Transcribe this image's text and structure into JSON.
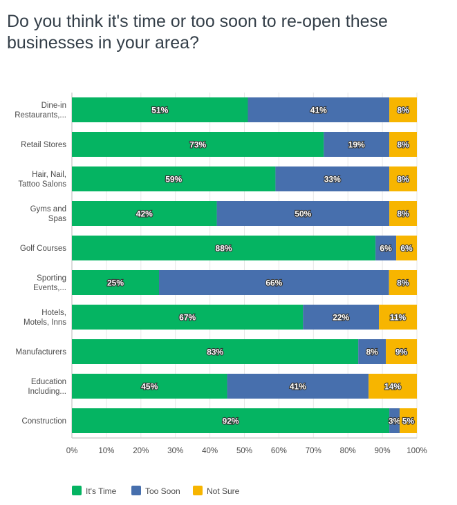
{
  "chart_data": {
    "type": "bar",
    "orientation": "horizontal",
    "stacked": true,
    "title": "Do you think it's time or too soon to re-open these businesses in your area?",
    "categories": [
      [
        "Dine-in",
        "Restaurants,..."
      ],
      [
        "Retail Stores"
      ],
      [
        "Hair, Nail,",
        "Tattoo Salons"
      ],
      [
        "Gyms and",
        "Spas"
      ],
      [
        "Golf Courses"
      ],
      [
        "Sporting",
        "Events,..."
      ],
      [
        "Hotels,",
        "Motels, Inns"
      ],
      [
        "Manufacturers"
      ],
      [
        "Education",
        "Including..."
      ],
      [
        "Construction"
      ]
    ],
    "series": [
      {
        "name": "It's Time",
        "color": "#05b462",
        "values": [
          51,
          73,
          59,
          42,
          88,
          25,
          67,
          83,
          45,
          92
        ]
      },
      {
        "name": "Too Soon",
        "color": "#476fad",
        "values": [
          41,
          19,
          33,
          50,
          6,
          66,
          22,
          8,
          41,
          3
        ]
      },
      {
        "name": "Not Sure",
        "color": "#f7b500",
        "values": [
          8,
          8,
          8,
          8,
          6,
          8,
          11,
          9,
          14,
          5
        ]
      }
    ],
    "xticks": [
      "0%",
      "10%",
      "20%",
      "30%",
      "40%",
      "50%",
      "60%",
      "70%",
      "80%",
      "90%",
      "100%"
    ],
    "xlim": [
      0,
      100
    ],
    "grid": true,
    "legend": "bottom-left"
  }
}
